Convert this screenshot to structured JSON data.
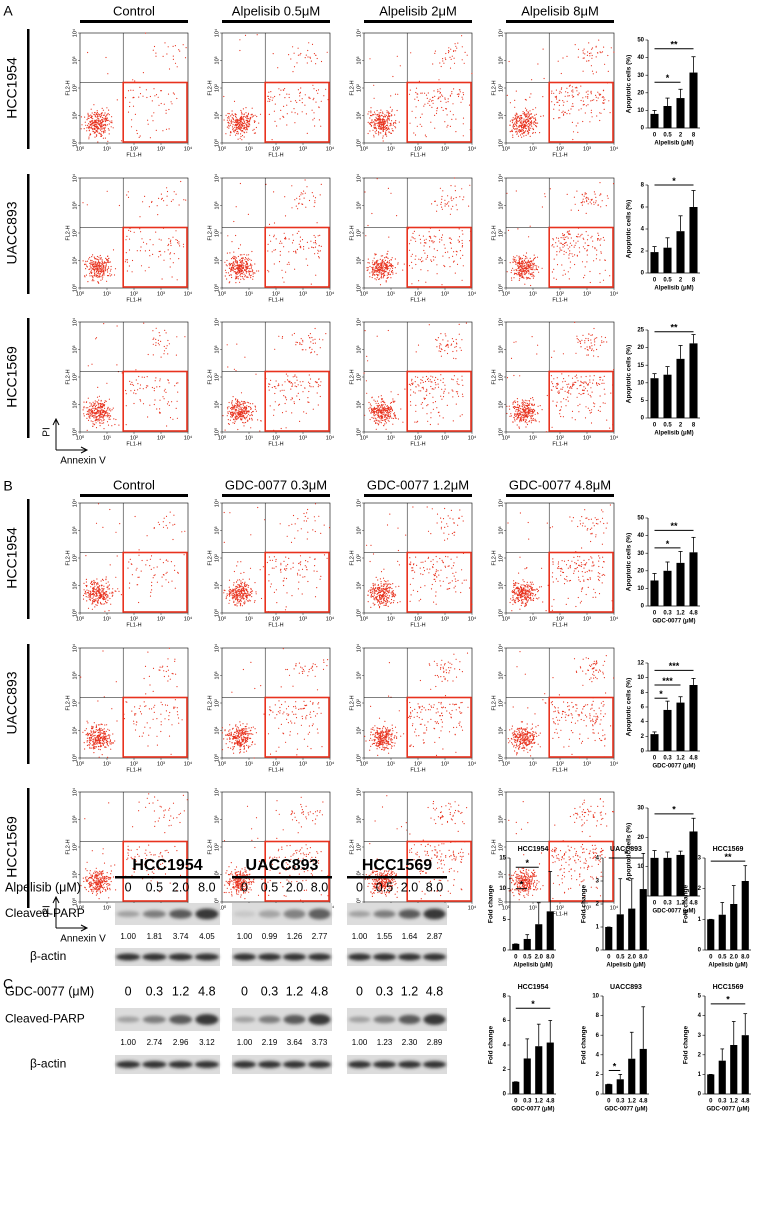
{
  "panels": [
    {
      "label": "A",
      "columns": [
        "Control",
        "Alpelisib 0.5μM",
        "Alpelisib 2μM",
        "Alpelisib 8μM"
      ],
      "rows": [
        "HCC1954",
        "UACC893",
        "HCC1569"
      ],
      "axis_indicator": {
        "y": "PI",
        "x": "Annexin V"
      }
    },
    {
      "label": "B",
      "columns": [
        "Control",
        "GDC-0077 0.3μM",
        "GDC-0077 1.2μM",
        "GDC-0077 4.8μM"
      ],
      "rows": [
        "HCC1954",
        "UACC893",
        "HCC1569"
      ],
      "axis_indicator": {
        "y": "PI",
        "x": "Annexin V"
      }
    }
  ],
  "flow_axes": {
    "x_label": "FL1-H",
    "y_label": "FL2-H",
    "ticks": [
      {
        "value": 0,
        "label": "10⁰"
      },
      {
        "value": 1,
        "label": "10¹"
      },
      {
        "value": 2,
        "label": "10²"
      },
      {
        "value": 3,
        "label": "10³"
      },
      {
        "value": 4,
        "label": "10⁴"
      }
    ]
  },
  "western": {
    "label": "C",
    "cell_lines": [
      "HCC1954",
      "UACC893",
      "HCC1569"
    ],
    "treatments": [
      {
        "drug": "Alpelisib (μM)",
        "doses": [
          "0",
          "0.5",
          "2.0",
          "8.0"
        ],
        "band": "Cleaved-PARP",
        "control": "β-actin",
        "quant": [
          [
            "1.00",
            "1.81",
            "3.74",
            "4.05"
          ],
          [
            "1.00",
            "0.99",
            "1.26",
            "2.77"
          ],
          [
            "1.00",
            "1.55",
            "1.64",
            "2.87"
          ]
        ]
      },
      {
        "drug": "GDC-0077 (μM)",
        "doses": [
          "0",
          "0.3",
          "1.2",
          "4.8"
        ],
        "band": "Cleaved-PARP",
        "control": "β-actin",
        "quant": [
          [
            "1.00",
            "2.74",
            "2.96",
            "3.12"
          ],
          [
            "1.00",
            "2.19",
            "3.64",
            "3.73"
          ],
          [
            "1.00",
            "1.23",
            "2.30",
            "2.89"
          ]
        ]
      }
    ]
  },
  "chart_data": [
    {
      "type": "bar",
      "x_label": "Alpelisib (μM)",
      "y_label": "Apoptotic cells (%)",
      "categories": [
        "0",
        "0.5",
        "2",
        "8"
      ],
      "values": [
        8,
        12.5,
        17,
        31.5
      ],
      "errors": [
        2,
        4.5,
        5,
        9
      ],
      "ylim": [
        0,
        50
      ],
      "yticks": [
        0,
        10,
        20,
        30,
        40,
        50
      ],
      "color": "#000000",
      "significance": [
        {
          "label": "**",
          "from": "0",
          "to": "8",
          "y": 45
        },
        {
          "label": "*",
          "from": "0",
          "to": "2",
          "y": 26
        }
      ]
    },
    {
      "type": "bar",
      "x_label": "Alpelisib (μM)",
      "y_label": "Apoptotic cells (%)",
      "categories": [
        "0",
        "0.5",
        "2",
        "8"
      ],
      "values": [
        1.9,
        2.3,
        3.8,
        6
      ],
      "errors": [
        0.5,
        0.9,
        1.4,
        1.5
      ],
      "ylim": [
        0,
        8
      ],
      "yticks": [
        0,
        2,
        4,
        6,
        8
      ],
      "color": "#000000",
      "significance": [
        {
          "label": "*",
          "from": "0",
          "to": "8",
          "y": 8
        }
      ]
    },
    {
      "type": "bar",
      "x_label": "Alpelisib (μM)",
      "y_label": "Apoptotic cells (%)",
      "categories": [
        "0",
        "0.5",
        "2",
        "8"
      ],
      "values": [
        11.3,
        12.3,
        16.8,
        21.2
      ],
      "errors": [
        1.3,
        2.3,
        3.8,
        2.5
      ],
      "ylim": [
        0,
        25
      ],
      "yticks": [
        0,
        5,
        10,
        15,
        20,
        25
      ],
      "color": "#000000",
      "significance": [
        {
          "label": "**",
          "from": "0",
          "to": "8",
          "y": 24.5
        }
      ]
    },
    {
      "type": "bar",
      "x_label": "GDC-0077 (μM)",
      "y_label": "Apoptotic cells (%)",
      "categories": [
        "0",
        "0.3",
        "1.2",
        "4.8"
      ],
      "values": [
        14.5,
        20,
        24.5,
        30.5
      ],
      "errors": [
        4,
        5,
        6.5,
        8.5
      ],
      "ylim": [
        0,
        50
      ],
      "yticks": [
        0,
        10,
        20,
        30,
        40,
        50
      ],
      "color": "#000000",
      "significance": [
        {
          "label": "**",
          "from": "0",
          "to": "4.8",
          "y": 43
        },
        {
          "label": "*",
          "from": "0",
          "to": "1.2",
          "y": 33
        }
      ]
    },
    {
      "type": "bar",
      "x_label": "GDC-0077 (μM)",
      "y_label": "Apoptotic cells (%)",
      "categories": [
        "0",
        "0.3",
        "1.2",
        "4.8"
      ],
      "values": [
        2.3,
        5.6,
        6.6,
        9
      ],
      "errors": [
        0.3,
        1.2,
        0.8,
        0.9
      ],
      "ylim": [
        0,
        12
      ],
      "yticks": [
        0,
        2,
        4,
        6,
        8,
        10,
        12
      ],
      "color": "#000000",
      "significance": [
        {
          "label": "***",
          "from": "0",
          "to": "4.8",
          "y": 11
        },
        {
          "label": "***",
          "from": "0",
          "to": "1.2",
          "y": 9
        },
        {
          "label": "*",
          "from": "0",
          "to": "0.3",
          "y": 7.2
        }
      ]
    },
    {
      "type": "bar",
      "x_label": "GDC-0077 (μM)",
      "y_label": "Apoptotic cells (%)",
      "categories": [
        "0",
        "0.3",
        "1.2",
        "4.8"
      ],
      "values": [
        13,
        13,
        14,
        22
      ],
      "errors": [
        2.5,
        2,
        1.3,
        4.5
      ],
      "ylim": [
        0,
        30
      ],
      "yticks": [
        0,
        10,
        20,
        30
      ],
      "color": "#000000",
      "significance": [
        {
          "label": "*",
          "from": "0",
          "to": "4.8",
          "y": 28
        }
      ]
    },
    {
      "type": "bar",
      "title": "HCC1954",
      "x_label": "Alpelisib (μM)",
      "y_label": "Fold change",
      "categories": [
        "0",
        "0.5",
        "2.0",
        "8.0"
      ],
      "values": [
        1,
        1.8,
        4.2,
        6.3
      ],
      "errors": [
        0,
        0.7,
        3.5,
        6.5
      ],
      "ylim": [
        0,
        15
      ],
      "yticks": [
        0,
        5,
        10,
        15
      ],
      "color": "#000000",
      "significance": [
        {
          "label": "*",
          "from": "0",
          "to": "2.0",
          "y": 13.5
        },
        {
          "label": "*",
          "from": "0",
          "to": "0.5",
          "y": 10
        }
      ]
    },
    {
      "type": "bar",
      "title": "UACC893",
      "x_label": "Alpelisib (μM)",
      "y_label": "Fold change",
      "categories": [
        "0",
        "0.5",
        "2.0",
        "8.0"
      ],
      "values": [
        1,
        1.55,
        1.8,
        2.65
      ],
      "errors": [
        0,
        1.55,
        1.3,
        1.55
      ],
      "ylim": [
        0,
        4
      ],
      "yticks": [
        0,
        1,
        2,
        3,
        4
      ],
      "color": "#000000",
      "significance": [
        {
          "label": "*",
          "from": "0",
          "to": "8.0",
          "y": 4
        }
      ]
    },
    {
      "type": "bar",
      "title": "HCC1569",
      "x_label": "Alpelisib (μM)",
      "y_label": "Fold change",
      "categories": [
        "0",
        "0.5",
        "2.0",
        "8.0"
      ],
      "values": [
        1,
        1.15,
        1.5,
        2.25
      ],
      "errors": [
        0,
        0.4,
        0.6,
        0.5
      ],
      "ylim": [
        0,
        3
      ],
      "yticks": [
        0,
        1,
        2,
        3
      ],
      "color": "#000000",
      "significance": [
        {
          "label": "**",
          "from": "0",
          "to": "8.0",
          "y": 2.9
        }
      ]
    },
    {
      "type": "bar",
      "title": "HCC1954",
      "x_label": "GDC-0077 (μM)",
      "y_label": "Fold change",
      "categories": [
        "0",
        "0.3",
        "1.2",
        "4.8"
      ],
      "values": [
        1,
        2.9,
        3.9,
        4.2
      ],
      "errors": [
        0,
        1.6,
        1.8,
        1.8
      ],
      "ylim": [
        0,
        8
      ],
      "yticks": [
        0,
        2,
        4,
        6,
        8
      ],
      "color": "#000000",
      "significance": [
        {
          "label": "*",
          "from": "0",
          "to": "4.8",
          "y": 7
        }
      ]
    },
    {
      "type": "bar",
      "title": "UACC893",
      "x_label": "GDC-0077 (μM)",
      "y_label": "Fold change",
      "categories": [
        "0",
        "0.3",
        "1.2",
        "4.8"
      ],
      "values": [
        1,
        1.5,
        3.6,
        4.6
      ],
      "errors": [
        0,
        0.5,
        2.7,
        4.3
      ],
      "ylim": [
        0,
        10
      ],
      "yticks": [
        0,
        2,
        4,
        6,
        8,
        10
      ],
      "color": "#000000",
      "significance": [
        {
          "label": "*",
          "from": "0",
          "to": "0.3",
          "y": 2.4
        }
      ]
    },
    {
      "type": "bar",
      "title": "HCC1569",
      "x_label": "GDC-0077 (μM)",
      "y_label": "Fold change",
      "categories": [
        "0",
        "0.3",
        "1.2",
        "4.8"
      ],
      "values": [
        1,
        1.7,
        2.5,
        3
      ],
      "errors": [
        0,
        0.6,
        1.2,
        1.1
      ],
      "ylim": [
        0,
        5
      ],
      "yticks": [
        0,
        1,
        2,
        3,
        4,
        5
      ],
      "color": "#000000",
      "significance": [
        {
          "label": "*",
          "from": "0",
          "to": "4.8",
          "y": 4.6
        }
      ]
    }
  ]
}
